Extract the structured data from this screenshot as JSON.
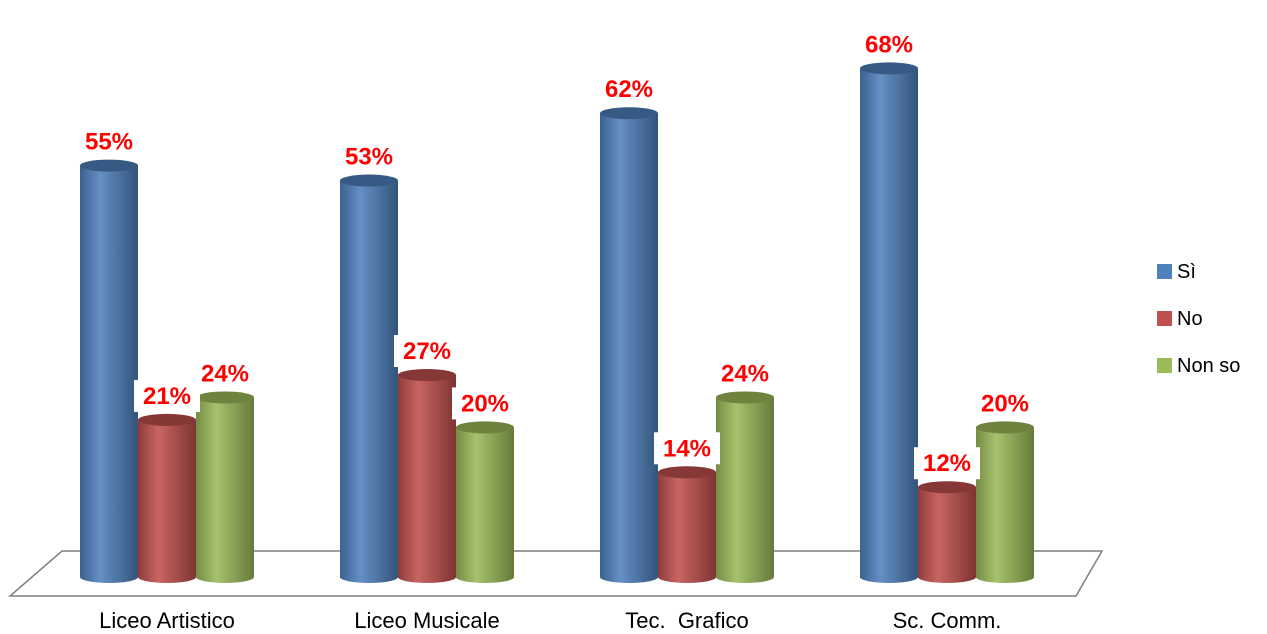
{
  "chart_data": {
    "type": "bar",
    "categories": [
      "Liceo Artistico",
      "Liceo Musicale",
      "Tec.  Grafico",
      "Sc. Comm."
    ],
    "series": [
      {
        "name": "Sì",
        "values": [
          55,
          53,
          62,
          68
        ],
        "color": "#4f81bd"
      },
      {
        "name": "No",
        "values": [
          21,
          27,
          14,
          12
        ],
        "color": "#c0504d"
      },
      {
        "name": "Non so",
        "values": [
          24,
          20,
          24,
          20
        ],
        "color": "#9bbb59"
      }
    ],
    "value_suffix": "%",
    "label_color": "#ff0000",
    "legend_position": "right",
    "style": "3d-cylinder",
    "grid": false,
    "ylim": [
      0,
      70
    ]
  }
}
